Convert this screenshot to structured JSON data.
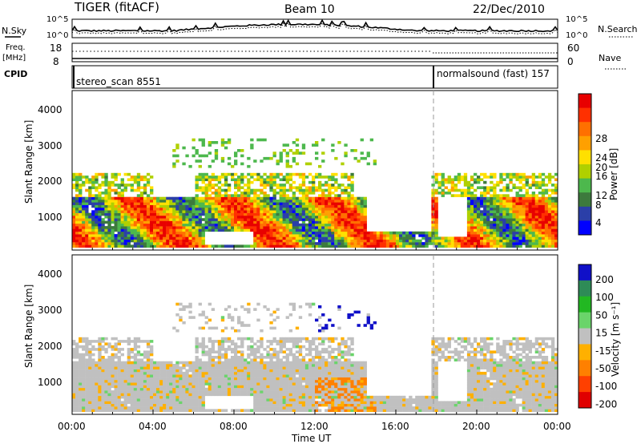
{
  "header": {
    "title": "TIGER (fitACF)",
    "beam": "Beam 10",
    "date": "22/Dec/2010"
  },
  "top_strip": {
    "left_label": "N.Sky",
    "right_label": "N.Search",
    "left_ticks": [
      "10^5",
      "10^0"
    ],
    "right_ticks": [
      "10^5",
      "10^0"
    ]
  },
  "freq_strip": {
    "left_label_1": "Freq.",
    "left_label_2": "[MHz]",
    "left_ticks": [
      "18",
      "8"
    ],
    "right_label": "Nave",
    "right_ticks": [
      "60",
      "0"
    ]
  },
  "cpid": {
    "label": "CPID",
    "seg1": "stereo_scan 8551",
    "seg2": "normalsound (fast) 157"
  },
  "colors": {
    "power": [
      "#0000ff",
      "#2b3fa8",
      "#3d7a3d",
      "#4db84d",
      "#b0d000",
      "#ffe000",
      "#ffa000",
      "#ff7000",
      "#ff3000",
      "#e80000"
    ],
    "velocity": [
      "#1010c8",
      "#2e8b57",
      "#22b822",
      "#6ad46a",
      "#c0c0c0",
      "#ffb000",
      "#ff8000",
      "#ff4000",
      "#e00000"
    ]
  },
  "chart_data": [
    {
      "type": "heatmap",
      "panel": "power",
      "ylabel": "Slant Range [km]",
      "yticks": [
        "1000",
        "2000",
        "3000",
        "4000"
      ],
      "ylim": [
        200,
        4600
      ],
      "xticks": [
        "00:00",
        "04:00",
        "08:00",
        "12:00",
        "16:00",
        "20:00",
        "00:00"
      ],
      "colorbar_label": "Power [dB]",
      "colorbar_ticks": [
        "4",
        "8",
        "12",
        "16",
        "20",
        "24",
        "28"
      ]
    },
    {
      "type": "heatmap",
      "panel": "velocity",
      "ylabel": "Slant Range [km]",
      "yticks": [
        "1000",
        "2000",
        "3000",
        "4000"
      ],
      "ylim": [
        200,
        4600
      ],
      "xticks": [
        "00:00",
        "04:00",
        "08:00",
        "12:00",
        "16:00",
        "20:00",
        "00:00"
      ],
      "xlabel": "Time UT",
      "colorbar_label": "Velocity [m s⁻¹]",
      "colorbar_ticks": [
        "-200",
        "-100",
        "-50",
        "-15",
        "15",
        "50",
        "100",
        "200"
      ]
    }
  ]
}
